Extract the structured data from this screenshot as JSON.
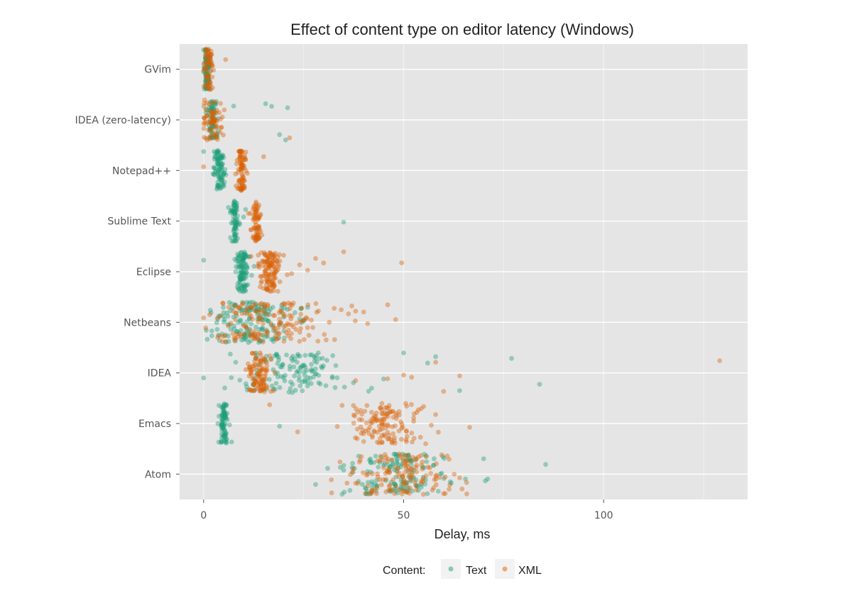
{
  "chart_data": {
    "type": "scatter",
    "title": "Effect of content type on editor latency (Windows)",
    "xlabel": "Delay, ms",
    "ylabel": "",
    "xlim": [
      -6,
      136
    ],
    "x_ticks": [
      0,
      50,
      100
    ],
    "grid": true,
    "categories": [
      "GVim",
      "IDEA (zero-latency)",
      "Notepad++",
      "Sublime Text",
      "Eclipse",
      "Netbeans",
      "IDEA",
      "Emacs",
      "Atom"
    ],
    "legend": {
      "title": "Content:",
      "position": "bottom"
    },
    "series": [
      {
        "name": "Text",
        "color": "#1b9e77",
        "groups": [
          {
            "category": "GVim",
            "center": 0.8,
            "spread": 0.4,
            "n": 90,
            "outliers": []
          },
          {
            "category": "IDEA (zero-latency)",
            "center": 2.2,
            "spread": 0.6,
            "n": 60,
            "outliers": [
              7.5,
              15.5,
              17,
              19,
              20.5,
              21,
              0.5,
              1.5
            ]
          },
          {
            "category": "Notepad++",
            "center": 3.8,
            "spread": 0.8,
            "n": 90,
            "outliers": [
              0
            ]
          },
          {
            "category": "Sublime Text",
            "center": 7.8,
            "spread": 0.5,
            "n": 70,
            "outliers": [
              10,
              10.5,
              35
            ]
          },
          {
            "category": "Eclipse",
            "center": 9.8,
            "spread": 0.8,
            "n": 100,
            "outliers": [
              0,
              8.5,
              11.5,
              12
            ]
          },
          {
            "category": "Netbeans",
            "center": 12,
            "spread": 5,
            "n": 160,
            "outliers": [
              24,
              26
            ]
          },
          {
            "category": "IDEA",
            "center": 22,
            "spread": 7,
            "n": 130,
            "outliers": [
              0,
              42,
              45,
              50,
              56,
              58,
              64,
              77,
              84
            ]
          },
          {
            "category": "Emacs",
            "center": 5,
            "spread": 0.6,
            "n": 80,
            "outliers": [
              19
            ]
          },
          {
            "category": "Atom",
            "center": 50,
            "spread": 6,
            "n": 140,
            "outliers": [
              28,
              31,
              35,
              70,
              71,
              85.5
            ]
          }
        ]
      },
      {
        "name": "XML",
        "color": "#d95f02",
        "groups": [
          {
            "category": "GVim",
            "center": 1.2,
            "spread": 0.5,
            "n": 60,
            "outliers": [
              5.5
            ]
          },
          {
            "category": "IDEA (zero-latency)",
            "center": 2,
            "spread": 1.5,
            "n": 70,
            "outliers": [
              21.5
            ]
          },
          {
            "category": "Notepad++",
            "center": 9.3,
            "spread": 0.6,
            "n": 80,
            "outliers": [
              0,
              15
            ]
          },
          {
            "category": "Sublime Text",
            "center": 13,
            "spread": 0.6,
            "n": 70,
            "outliers": []
          },
          {
            "category": "Eclipse",
            "center": 16.5,
            "spread": 1.4,
            "n": 120,
            "outliers": [
              22,
              24,
              26,
              28,
              30,
              35,
              49.5
            ]
          },
          {
            "category": "Netbeans",
            "center": 17,
            "spread": 8,
            "n": 160,
            "outliers": [
              0,
              38,
              40,
              41,
              46,
              48
            ]
          },
          {
            "category": "IDEA",
            "center": 14,
            "spread": 1.6,
            "n": 100,
            "outliers": [
              38,
              46,
              50,
              52,
              58,
              60,
              64,
              129
            ]
          },
          {
            "category": "Emacs",
            "center": 45,
            "spread": 5,
            "n": 130,
            "outliers": [
              16.5,
              23.5,
              52,
              55,
              58,
              66.5
            ]
          },
          {
            "category": "Atom",
            "center": 50,
            "spread": 6,
            "n": 140,
            "outliers": [
              32,
              38,
              42,
              60,
              64
            ]
          }
        ]
      }
    ]
  }
}
